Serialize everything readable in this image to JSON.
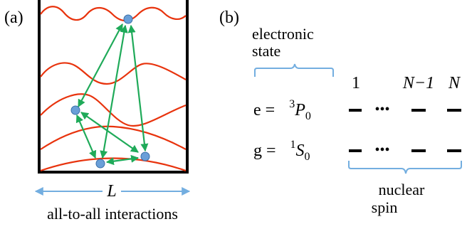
{
  "panel_a": {
    "label": "(a)",
    "length_label": "L",
    "caption": "all-to-all interactions",
    "colors": {
      "wall": "#000000",
      "mode": "#e8330d",
      "arrow": "#1faa59",
      "atom": "#6a9fd8",
      "length_arrow": "#73aee0"
    }
  },
  "panel_b": {
    "label": "(b)",
    "electronic_label_line1": "electronic",
    "electronic_label_line2": "state",
    "site_labels": {
      "first": "1",
      "second_last": "N−1",
      "last": "N"
    },
    "excited": {
      "prefix": "e = ",
      "sup": "3",
      "term": "P",
      "sub": "0"
    },
    "ground": {
      "prefix": "g = ",
      "sup": "1",
      "term": "S",
      "sub": "0"
    },
    "ellipsis": "•••",
    "nuclear_label_line1": "nuclear",
    "nuclear_label_line2": "spin",
    "colors": {
      "brace": "#73aee0",
      "level": "#000000"
    }
  }
}
